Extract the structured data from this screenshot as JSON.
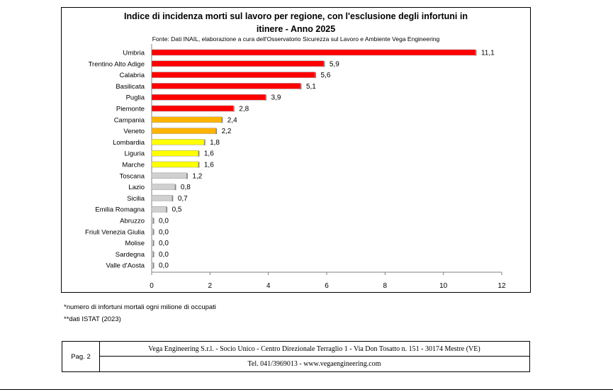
{
  "chart_data": {
    "type": "bar",
    "orientation": "horizontal",
    "title_line1": "Indice di incidenza morti sul lavoro per regione, con l'esclusione degli infortuni in",
    "title_line2": "itinere - Anno 2025",
    "subtitle": "Fonte: Dati INAIL, elaborazione a cura dell'Osservatorio Sicurezza sul Lavoro e Ambiente Vega Engineering",
    "categories": [
      "Umbria",
      "Trentino Alto Adige",
      "Calabria",
      "Basilicata",
      "Puglia",
      "Piemonte",
      "Campania",
      "Veneto",
      "Lombardia",
      "Liguria",
      "Marche",
      "Toscana",
      "Lazio",
      "Sicilia",
      "Emilia Romagna",
      "Abruzzo",
      "Friuli Venezia Giulia",
      "Molise",
      "Sardegna",
      "Valle d'Aosta"
    ],
    "values": [
      11.1,
      5.9,
      5.6,
      5.1,
      3.9,
      2.8,
      2.4,
      2.2,
      1.8,
      1.6,
      1.6,
      1.2,
      0.8,
      0.7,
      0.5,
      0.0,
      0.0,
      0.0,
      0.0,
      0.0
    ],
    "value_labels": [
      "11,1",
      "5,9",
      "5,6",
      "5,1",
      "3,9",
      "2,8",
      "2,4",
      "2,2",
      "1,8",
      "1,6",
      "1,6",
      "1,2",
      "0,8",
      "0,7",
      "0,5",
      "0,0",
      "0,0",
      "0,0",
      "0,0",
      "0,0"
    ],
    "bar_colors": [
      "#ff0000",
      "#ff0000",
      "#ff0000",
      "#ff0000",
      "#ff0000",
      "#ff0000",
      "#ffb400",
      "#ffb400",
      "#ffff00",
      "#ffff00",
      "#ffff00",
      "#d0d0d0",
      "#d0d0d0",
      "#d0d0d0",
      "#d0d0d0",
      "#d0d0d0",
      "#d0d0d0",
      "#d0d0d0",
      "#d0d0d0",
      "#d0d0d0"
    ],
    "xlim": [
      0,
      12
    ],
    "xticks": [
      0,
      2,
      4,
      6,
      8,
      10,
      12
    ],
    "grid": false
  },
  "footnotes": {
    "note1": "*numero di infortuni mortali ogni milione di occupati",
    "note2": "**dati ISTAT (2023)"
  },
  "footer": {
    "page": "Pag. 2",
    "company": "Vega Engineering S.r.l. - Socio Unico - Centro Direzionale Terraglio 1 - Via Don Tosatto n. 151 - 30174 Mestre (VE)",
    "contact": "Tel. 041/3969013 - www.vegaengineering.com"
  }
}
